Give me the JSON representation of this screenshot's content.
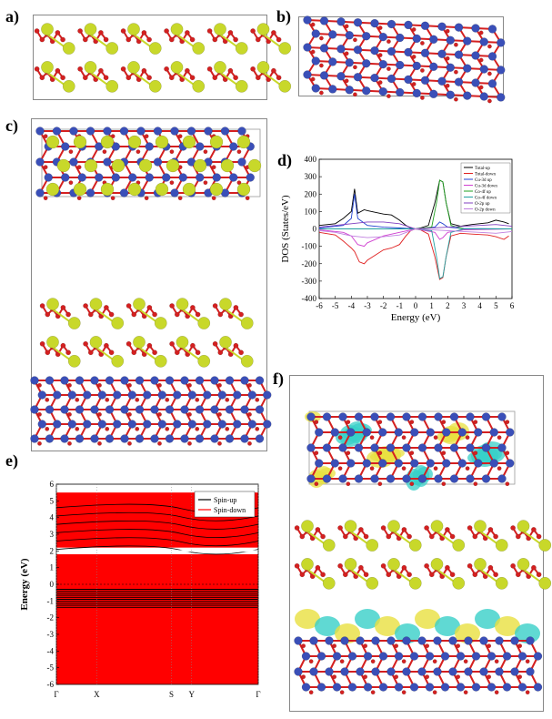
{
  "panels": {
    "a": {
      "label": "a)"
    },
    "b": {
      "label": "b)"
    },
    "c": {
      "label": "c)"
    },
    "d": {
      "label": "d)"
    },
    "e": {
      "label": "e)"
    },
    "f": {
      "label": "f)"
    }
  },
  "colors": {
    "yellow_atom": "#c8d82a",
    "red_atom": "#d42020",
    "blue_atom": "#3a4fb8",
    "cyan_isosurface": "#38d0c8",
    "yellow_isosurface": "#e8e040"
  },
  "chart_data": [
    {
      "id": "dos",
      "type": "line",
      "xlabel": "Energy (eV)",
      "ylabel": "DOS (States/eV)",
      "xlim": [
        -6,
        6
      ],
      "ylim": [
        -400,
        400
      ],
      "xticks": [
        -6,
        -5,
        -4,
        -3,
        -2,
        -1,
        0,
        1,
        2,
        3,
        4,
        5,
        6
      ],
      "yticks": [
        400,
        300,
        200,
        100,
        0,
        -100,
        -200,
        -300,
        -400
      ],
      "legend_placement": "top-right",
      "series": [
        {
          "name": "Total-up",
          "color": "#000000",
          "x": [
            -6,
            -5,
            -4.5,
            -4,
            -3.8,
            -3.6,
            -3.2,
            -3,
            -2.5,
            -2,
            -1.5,
            -1,
            -0.6,
            -0.3,
            0,
            0.3,
            0.8,
            1.2,
            1.5,
            1.7,
            1.9,
            2.2,
            2.8,
            3.5,
            4.5,
            5,
            5.5,
            5.8
          ],
          "y": [
            20,
            30,
            60,
            100,
            230,
            90,
            110,
            105,
            95,
            85,
            80,
            50,
            20,
            5,
            0,
            5,
            20,
            150,
            280,
            270,
            150,
            30,
            15,
            25,
            35,
            50,
            40,
            30
          ]
        },
        {
          "name": "Total-down",
          "color": "#e02020",
          "x": [
            -6,
            -5,
            -4.5,
            -4,
            -3.8,
            -3.5,
            -3.2,
            -3,
            -2.5,
            -2,
            -1.5,
            -1,
            -0.6,
            -0.3,
            0,
            0.3,
            0.8,
            1.2,
            1.5,
            1.7,
            1.9,
            2.2,
            2.8,
            3.5,
            4.5,
            5,
            5.5,
            5.8
          ],
          "y": [
            -20,
            -35,
            -70,
            -110,
            -130,
            -190,
            -200,
            -180,
            -150,
            -120,
            -110,
            -90,
            -40,
            -10,
            0,
            -5,
            -30,
            -160,
            -290,
            -280,
            -160,
            -40,
            -25,
            -30,
            -35,
            -45,
            -60,
            -40
          ]
        },
        {
          "name": "Cu-3d up",
          "color": "#2040d0",
          "x": [
            -6,
            -4.5,
            -4,
            -3.8,
            -3.6,
            -3,
            -2,
            -1,
            0,
            1.2,
            1.5,
            1.7,
            2,
            3,
            6
          ],
          "y": [
            5,
            20,
            60,
            200,
            60,
            20,
            10,
            5,
            0,
            10,
            40,
            30,
            10,
            2,
            0
          ]
        },
        {
          "name": "Cu-3d down",
          "color": "#d040d0",
          "x": [
            -6,
            -4.5,
            -4,
            -3.6,
            -3.2,
            -3,
            -2,
            -1,
            0,
            1.2,
            1.5,
            1.7,
            2,
            3,
            6
          ],
          "y": [
            -5,
            -20,
            -40,
            -90,
            -100,
            -80,
            -40,
            -20,
            0,
            -20,
            -60,
            -50,
            -20,
            -5,
            0
          ]
        },
        {
          "name": "Co-4f up",
          "color": "#20a020",
          "x": [
            -6,
            0,
            1,
            1.3,
            1.5,
            1.7,
            1.9,
            2.2,
            3,
            6
          ],
          "y": [
            0,
            0,
            10,
            150,
            280,
            270,
            150,
            20,
            0,
            0
          ]
        },
        {
          "name": "Co-4f down",
          "color": "#20a0a0",
          "x": [
            -6,
            0,
            1,
            1.3,
            1.5,
            1.7,
            1.9,
            2.2,
            3,
            6
          ],
          "y": [
            0,
            0,
            -10,
            -160,
            -285,
            -275,
            -160,
            -20,
            0,
            0
          ]
        },
        {
          "name": "O-2p up",
          "color": "#8040c0",
          "x": [
            -6,
            -5,
            -4,
            -3,
            -2,
            -1,
            0,
            2,
            3,
            4,
            5,
            6
          ],
          "y": [
            10,
            20,
            30,
            40,
            40,
            30,
            0,
            10,
            15,
            20,
            25,
            15
          ]
        },
        {
          "name": "O-2p down",
          "color": "#c080e0",
          "x": [
            -6,
            -5,
            -4,
            -3,
            -2,
            -1,
            0,
            2,
            3,
            4,
            5,
            6
          ],
          "y": [
            -10,
            -20,
            -40,
            -50,
            -45,
            -35,
            0,
            -10,
            -15,
            -20,
            -25,
            -15
          ]
        }
      ]
    },
    {
      "id": "bands",
      "type": "line",
      "ylabel": "Energy (eV)",
      "ylim": [
        -6,
        6
      ],
      "yticks": [
        6,
        5,
        4,
        3,
        2,
        1,
        0,
        -1,
        -2,
        -3,
        -4,
        -5,
        -6
      ],
      "kpoints": [
        "Γ",
        "X",
        "S",
        "Y",
        "Γ"
      ],
      "kpoint_positions": [
        0,
        0.2,
        0.57,
        0.67,
        1
      ],
      "legend_placement": "top-right",
      "series": [
        {
          "name": "Spin-up",
          "color": "#000000"
        },
        {
          "name": "Spin-down",
          "color": "#ff0000"
        }
      ]
    }
  ]
}
